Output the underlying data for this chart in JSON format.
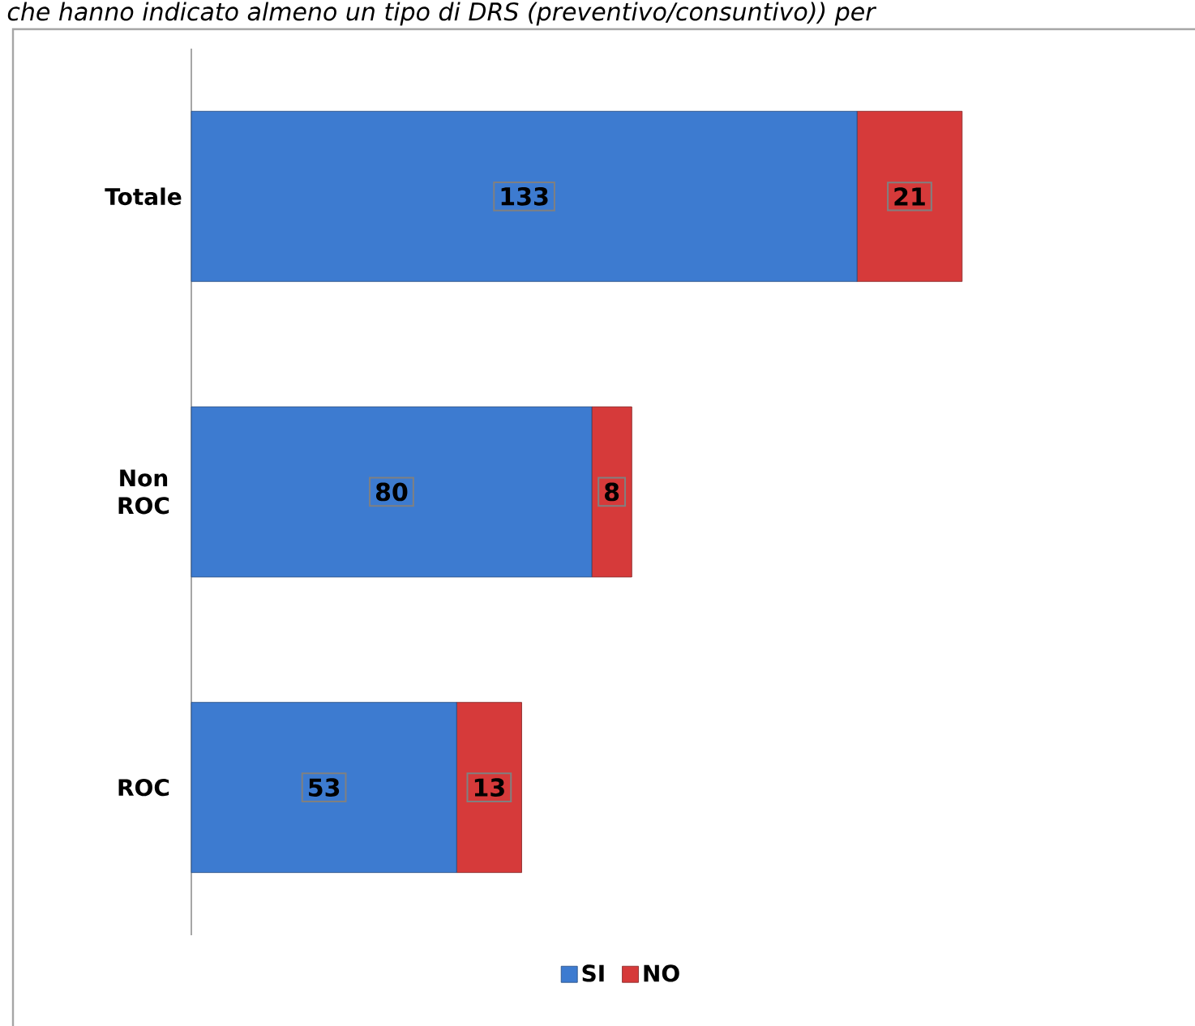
{
  "chart_data": {
    "type": "bar",
    "orientation": "horizontal",
    "stacked": true,
    "title": "che hanno indicato almeno un tipo di DRS (preventivo/consuntivo)) per",
    "categories": [
      "Totale",
      "Non ROC",
      "ROC"
    ],
    "series": [
      {
        "name": "SI",
        "color": "#3d7bd0",
        "values": [
          133,
          80,
          53
        ]
      },
      {
        "name": "NO",
        "color": "#d63a3a",
        "values": [
          21,
          8,
          13
        ]
      }
    ],
    "data_labels": true,
    "legend": "bottom"
  }
}
